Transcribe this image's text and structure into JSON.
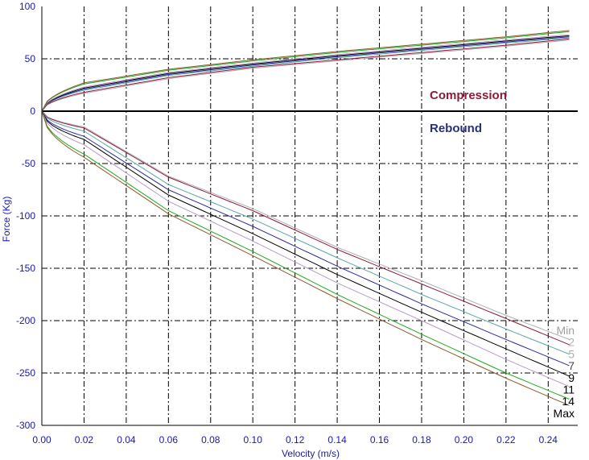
{
  "chart_data": {
    "type": "line",
    "title": "",
    "xlabel": "Velocity (m/s)",
    "ylabel": "Force (Kg)",
    "xlim": [
      0,
      0.254
    ],
    "ylim": [
      -300,
      100
    ],
    "x_ticks": [
      "0.00",
      "0.02",
      "0.04",
      "0.06",
      "0.08",
      "0.10",
      "0.12",
      "0.14",
      "0.16",
      "0.18",
      "0.20",
      "0.22",
      "0.24"
    ],
    "y_ticks": [
      "100",
      "50",
      "0",
      "-50",
      "-100",
      "-150",
      "-200",
      "-250",
      "-300"
    ],
    "grid": true,
    "annotations": {
      "compression": {
        "text": "Compression",
        "color": "#8b1a3a"
      },
      "rebound": {
        "text": "Rebound",
        "color": "#2a2f7a"
      }
    },
    "series": [
      {
        "name": "Min",
        "color": "#b0b0b0",
        "label_color": "#a0a0a0",
        "compression": [
          [
            0,
            0
          ],
          [
            0.02,
            17
          ],
          [
            0.06,
            31
          ],
          [
            0.1,
            41
          ],
          [
            0.14,
            48
          ],
          [
            0.18,
            55
          ],
          [
            0.22,
            62
          ],
          [
            0.25,
            68
          ]
        ],
        "rebound": [
          [
            0,
            0
          ],
          [
            0.02,
            -15
          ],
          [
            0.06,
            -62
          ],
          [
            0.1,
            -93
          ],
          [
            0.14,
            -130
          ],
          [
            0.18,
            -162
          ],
          [
            0.22,
            -195
          ],
          [
            0.25,
            -218
          ]
        ]
      },
      {
        "name": "2",
        "color": "#8c1a3c",
        "label_color": "#b0b0b0",
        "compression": [
          [
            0,
            0
          ],
          [
            0.02,
            18
          ],
          [
            0.06,
            32
          ],
          [
            0.1,
            42
          ],
          [
            0.14,
            49
          ],
          [
            0.18,
            56
          ],
          [
            0.22,
            63
          ],
          [
            0.25,
            69
          ]
        ],
        "rebound": [
          [
            0,
            0
          ],
          [
            0.02,
            -16
          ],
          [
            0.06,
            -63
          ],
          [
            0.1,
            -95
          ],
          [
            0.14,
            -132
          ],
          [
            0.18,
            -165
          ],
          [
            0.22,
            -198
          ],
          [
            0.25,
            -223
          ]
        ]
      },
      {
        "name": "5",
        "color": "#5ca6a8",
        "label_color": "#b0b0b0",
        "compression": [
          [
            0,
            0
          ],
          [
            0.02,
            20
          ],
          [
            0.06,
            34
          ],
          [
            0.1,
            43
          ],
          [
            0.14,
            51
          ],
          [
            0.18,
            58
          ],
          [
            0.22,
            65
          ],
          [
            0.25,
            70
          ]
        ],
        "rebound": [
          [
            0,
            0
          ],
          [
            0.02,
            -19
          ],
          [
            0.06,
            -70
          ],
          [
            0.1,
            -103
          ],
          [
            0.14,
            -140
          ],
          [
            0.18,
            -175
          ],
          [
            0.22,
            -208
          ],
          [
            0.25,
            -232
          ]
        ]
      },
      {
        "name": "7",
        "color": "#2a2a9a",
        "label_color": "#444444",
        "compression": [
          [
            0,
            0
          ],
          [
            0.02,
            21
          ],
          [
            0.06,
            35
          ],
          [
            0.1,
            44
          ],
          [
            0.14,
            52
          ],
          [
            0.18,
            59
          ],
          [
            0.22,
            66
          ],
          [
            0.25,
            71
          ]
        ],
        "rebound": [
          [
            0,
            0
          ],
          [
            0.02,
            -24
          ],
          [
            0.06,
            -75
          ],
          [
            0.1,
            -110
          ],
          [
            0.14,
            -148
          ],
          [
            0.18,
            -184
          ],
          [
            0.22,
            -218
          ],
          [
            0.25,
            -243
          ]
        ]
      },
      {
        "name": "9",
        "color": "#000000",
        "label_color": "#000000",
        "compression": [
          [
            0,
            0
          ],
          [
            0.02,
            22
          ],
          [
            0.06,
            36
          ],
          [
            0.1,
            45
          ],
          [
            0.14,
            53
          ],
          [
            0.18,
            60
          ],
          [
            0.22,
            67
          ],
          [
            0.25,
            72
          ]
        ],
        "rebound": [
          [
            0,
            0
          ],
          [
            0.02,
            -27
          ],
          [
            0.06,
            -80
          ],
          [
            0.1,
            -117
          ],
          [
            0.14,
            -156
          ],
          [
            0.18,
            -192
          ],
          [
            0.22,
            -227
          ],
          [
            0.25,
            -253
          ]
        ]
      },
      {
        "name": "11",
        "color": "#b89ac8",
        "label_color": "#000000",
        "compression": [
          [
            0,
            0
          ],
          [
            0.02,
            23
          ],
          [
            0.06,
            37
          ],
          [
            0.1,
            46
          ],
          [
            0.14,
            54
          ],
          [
            0.18,
            61
          ],
          [
            0.22,
            68
          ],
          [
            0.25,
            73
          ]
        ],
        "rebound": [
          [
            0,
            0
          ],
          [
            0.02,
            -32
          ],
          [
            0.06,
            -86
          ],
          [
            0.1,
            -124
          ],
          [
            0.14,
            -164
          ],
          [
            0.18,
            -200
          ],
          [
            0.22,
            -237
          ],
          [
            0.25,
            -263
          ]
        ]
      },
      {
        "name": "14",
        "color": "#22aa22",
        "label_color": "#000000",
        "compression": [
          [
            0,
            0
          ],
          [
            0.02,
            26
          ],
          [
            0.06,
            39
          ],
          [
            0.1,
            48
          ],
          [
            0.14,
            56
          ],
          [
            0.18,
            63
          ],
          [
            0.22,
            70
          ],
          [
            0.25,
            76
          ]
        ],
        "rebound": [
          [
            0,
            0
          ],
          [
            0.02,
            -41
          ],
          [
            0.06,
            -95
          ],
          [
            0.1,
            -134
          ],
          [
            0.14,
            -175
          ],
          [
            0.18,
            -213
          ],
          [
            0.22,
            -250
          ],
          [
            0.25,
            -275
          ]
        ]
      },
      {
        "name": "Max",
        "color": "#8b5a2b",
        "label_color": "#000000",
        "compression": [
          [
            0,
            0
          ],
          [
            0.02,
            27
          ],
          [
            0.06,
            40
          ],
          [
            0.1,
            49
          ],
          [
            0.14,
            57
          ],
          [
            0.18,
            64
          ],
          [
            0.22,
            71
          ],
          [
            0.25,
            77
          ]
        ],
        "rebound": [
          [
            0,
            0
          ],
          [
            0.02,
            -44
          ],
          [
            0.06,
            -98
          ],
          [
            0.1,
            -138
          ],
          [
            0.14,
            -179
          ],
          [
            0.18,
            -218
          ],
          [
            0.22,
            -255
          ],
          [
            0.25,
            -281
          ]
        ]
      }
    ]
  }
}
